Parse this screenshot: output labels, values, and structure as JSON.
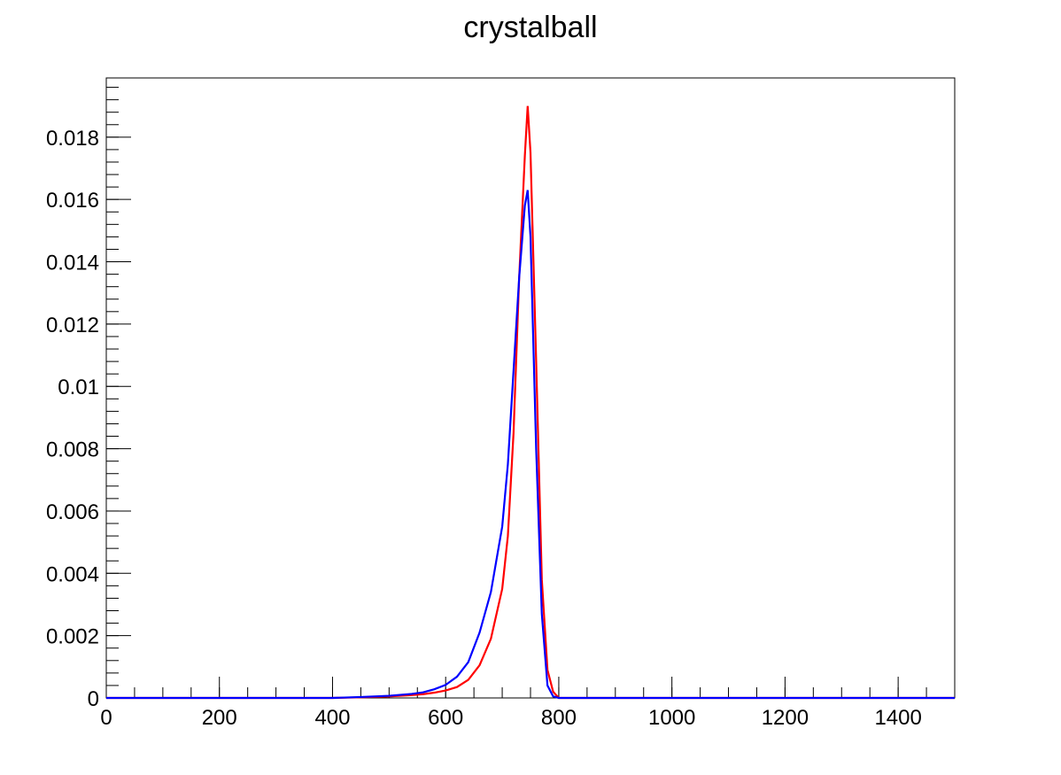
{
  "chart_data": {
    "type": "line",
    "title": "crystalball",
    "xlabel": "",
    "ylabel": "",
    "xlim": [
      0,
      1500
    ],
    "ylim": [
      0,
      0.0199
    ],
    "x_ticks": [
      0,
      200,
      400,
      600,
      800,
      1000,
      1200,
      1400
    ],
    "x_tick_labels": [
      "0",
      "200",
      "400",
      "600",
      "800",
      "1000",
      "1200",
      "1400"
    ],
    "y_ticks": [
      0,
      0.002,
      0.004,
      0.006,
      0.008,
      0.01,
      0.012,
      0.014,
      0.016,
      0.018
    ],
    "y_tick_labels": [
      "0",
      "0.002",
      "0.004",
      "0.006",
      "0.008",
      "0.01",
      "0.012",
      "0.014",
      "0.016",
      "0.018"
    ],
    "grid": false,
    "legend": "none",
    "series": [
      {
        "color": "#ff0000",
        "x": [
          0,
          400,
          450,
          500,
          540,
          560,
          580,
          600,
          620,
          640,
          660,
          680,
          700,
          710,
          720,
          730,
          740,
          745,
          750,
          760,
          770,
          780,
          790,
          800,
          1500
        ],
        "y": [
          0,
          0,
          2e-05,
          5e-05,
          9e-05,
          0.00012,
          0.00017,
          0.00024,
          0.00035,
          0.00058,
          0.00105,
          0.0019,
          0.0035,
          0.0052,
          0.0085,
          0.0135,
          0.0174,
          0.019,
          0.0175,
          0.0108,
          0.0038,
          0.0009,
          0.0002,
          0,
          0
        ]
      },
      {
        "color": "#0000ff",
        "x": [
          0,
          400,
          450,
          500,
          540,
          560,
          580,
          600,
          620,
          640,
          660,
          680,
          700,
          710,
          720,
          730,
          740,
          745,
          750,
          760,
          770,
          780,
          790,
          800,
          1500
        ],
        "y": [
          0,
          0,
          3e-05,
          7e-05,
          0.00013,
          0.00018,
          0.00028,
          0.00042,
          0.00068,
          0.00115,
          0.0021,
          0.0034,
          0.0055,
          0.0075,
          0.0105,
          0.0135,
          0.0158,
          0.0163,
          0.0148,
          0.008,
          0.0027,
          0.0004,
          5e-05,
          0,
          0
        ]
      }
    ]
  }
}
